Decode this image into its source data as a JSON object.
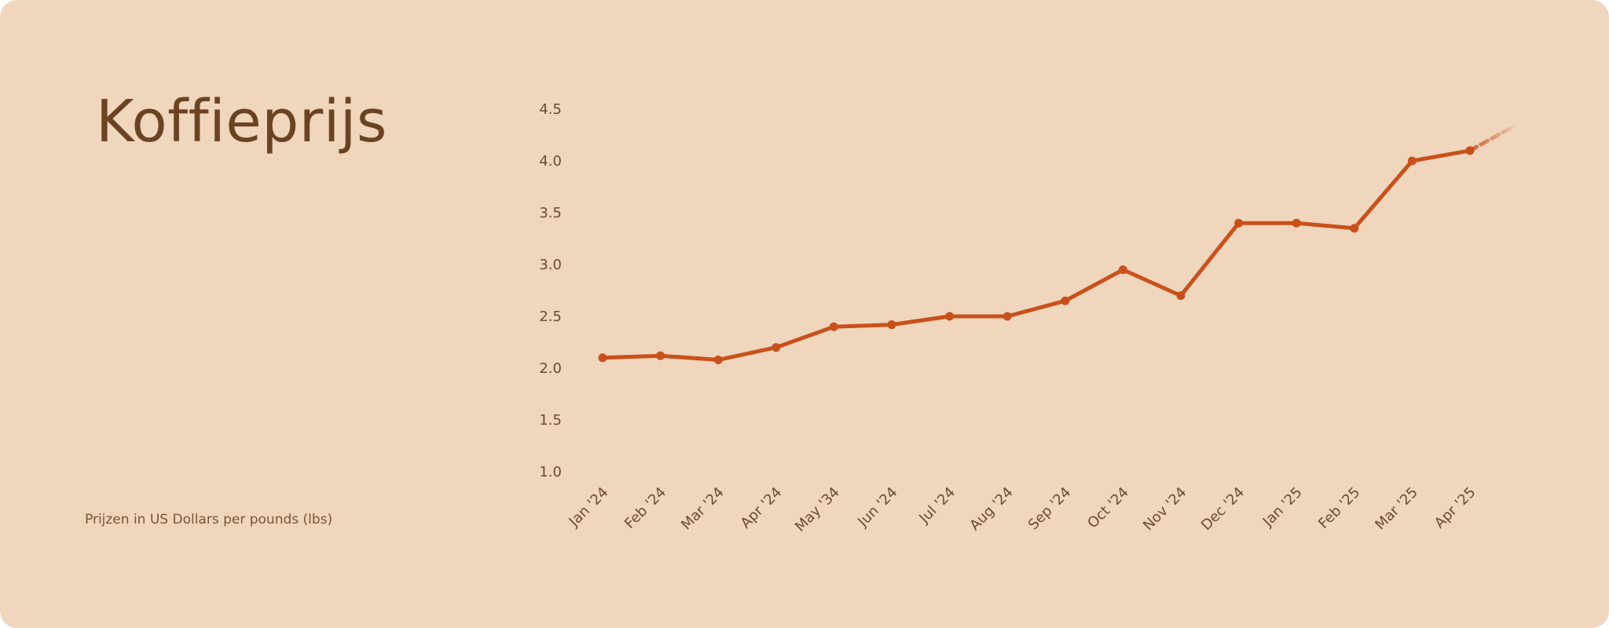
{
  "chart_data": {
    "type": "line",
    "title": "Koffieprijs",
    "note": "Prijzen in US Dollars per pounds (lbs)",
    "categories": [
      "Jan '24",
      "Feb '24",
      "Mar '24",
      "Apr '24",
      "May '34",
      "Jun '24",
      "Jul '24",
      "Aug '24",
      "Sep '24",
      "Oct '24",
      "Nov '24",
      "Dec '24",
      "Jan '25",
      "Feb '25",
      "Mar '25",
      "Apr '25"
    ],
    "series": [
      {
        "values": [
          2.1,
          2.12,
          2.08,
          2.2,
          2.4,
          2.42,
          2.5,
          2.5,
          2.65,
          2.95,
          2.7,
          3.4,
          3.4,
          3.35,
          4.0,
          4.1
        ],
        "trend_continuation": "dashed-fade"
      }
    ],
    "y_ticks": [
      "1.0",
      "1.5",
      "2.0",
      "2.5",
      "3.0",
      "3.5",
      "4.0",
      "4.5"
    ],
    "ylim": [
      1.0,
      4.5
    ],
    "grid": false,
    "legend": "none",
    "colors": {
      "line": "#c9501a",
      "background": "#efd6bd",
      "title": "#6b4323",
      "labels": "#6b4a33"
    }
  }
}
